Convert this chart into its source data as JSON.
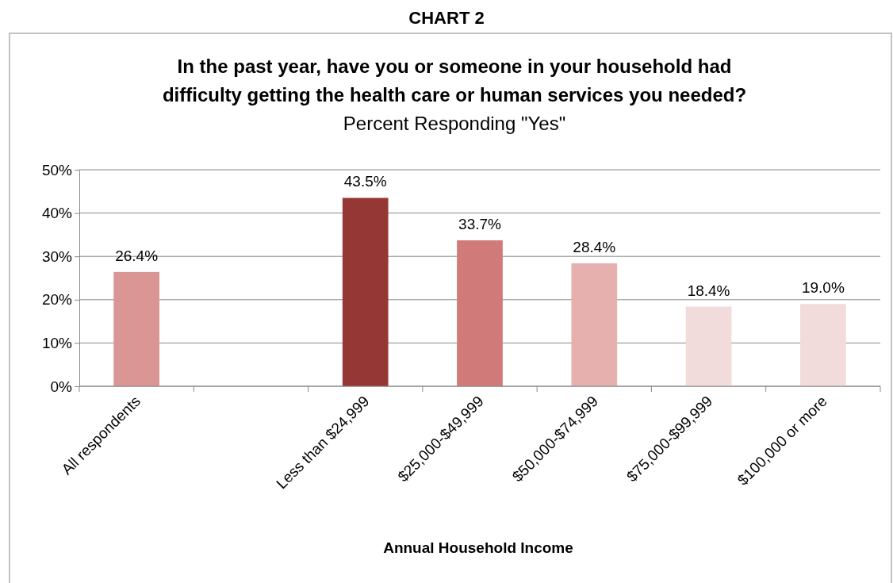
{
  "chart_data": {
    "type": "bar",
    "title": "In the past year, have you or someone in your household had\ndifficulty getting the health care or human services you needed?",
    "subtitle": "Percent Responding \"Yes\"",
    "xlabel": "Annual Household Income",
    "annotations": [
      "CHART 2"
    ],
    "categories": [
      "All respondents",
      null,
      "Less than $24,999",
      "$25,000-$49,999",
      "$50,000-$74,999",
      "$75,000-$99,999",
      "$100,000 or more"
    ],
    "values": [
      26.4,
      null,
      43.5,
      33.7,
      28.4,
      18.4,
      19.0
    ],
    "value_labels": [
      "26.4%",
      null,
      "43.5%",
      "33.7%",
      "28.4%",
      "18.4%",
      "19.0%"
    ],
    "colors": [
      "#d99694",
      null,
      "#953735",
      "#d07b7a",
      "#e6b0af",
      "#f2dcdb",
      "#f2dcdb"
    ],
    "ylim": [
      0,
      50
    ],
    "yticks": [
      {
        "value": 0,
        "label": "0%"
      },
      {
        "value": 10,
        "label": "10%"
      },
      {
        "value": 20,
        "label": "20%"
      },
      {
        "value": 30,
        "label": "30%"
      },
      {
        "value": 40,
        "label": "40%"
      },
      {
        "value": 50,
        "label": "50%"
      }
    ],
    "grid": "y"
  }
}
